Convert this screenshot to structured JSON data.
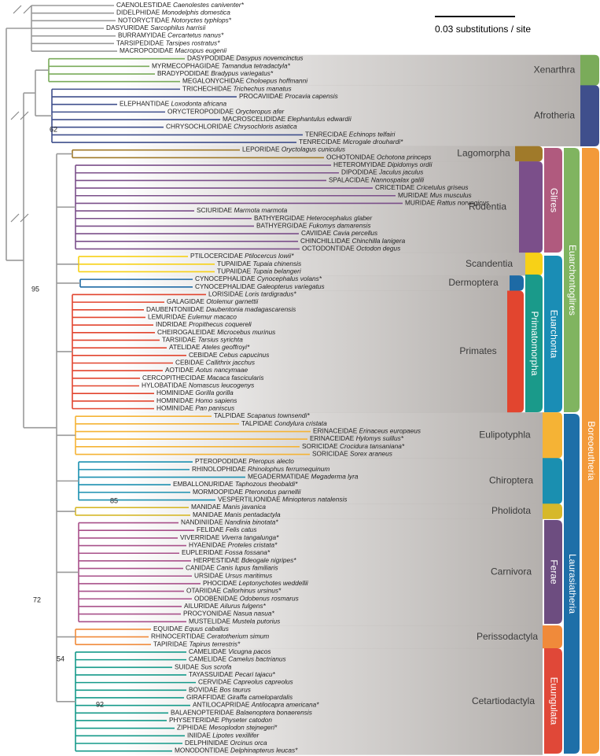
{
  "scale_bar": "0.03 substitutions / site",
  "outgroup": {
    "color": "#9a9a9a",
    "taxa": [
      [
        "CAENOLESTIDAE",
        "Caenolestes caniventer*"
      ],
      [
        "DIDELPHIDAE",
        "Monodelphis domestica"
      ],
      [
        "NOTORYCTIDAE",
        "Notoryctes typhlops*"
      ],
      [
        "DASYURIDAE",
        "Sarcophilus harrisii"
      ],
      [
        "BURRAMYIDAE",
        "Cercartetus nanus*"
      ],
      [
        "TARSIPEDIDAE",
        "Tarsipes rostratus*"
      ],
      [
        "MACROPODIDAE",
        "Macropus eugenii"
      ]
    ]
  },
  "clades": [
    {
      "name": "Xenarthra",
      "color": "#7aab5a",
      "taxa": [
        [
          "DASYPODIDAE",
          "Dasypus novemcinctus"
        ],
        [
          "MYRMECOPHAGIDAE",
          "Tamandua tetradactyla*"
        ],
        [
          "BRADYPODIDAE",
          "Bradypus variegatus*"
        ],
        [
          "MEGALONYCHIDAE",
          "Choloepus hoffmanni"
        ]
      ]
    },
    {
      "name": "Afrotheria",
      "color": "#3f4f8c",
      "taxa": [
        [
          "TRICHECHIDAE",
          "Trichechus manatus"
        ],
        [
          "PROCAVIIDAE",
          "Procavia capensis"
        ],
        [
          "ELEPHANTIDAE",
          "Loxodonta africana"
        ],
        [
          "ORYCTEROPODIDAE",
          "Orycteropus afer"
        ],
        [
          "MACROSCELIDIDAE",
          "Elephantulus edwardii"
        ],
        [
          "CHRYSOCHLORIDAE",
          "Chrysochloris asiatica"
        ],
        [
          "TENRECIDAE",
          "Echinops telfairi"
        ],
        [
          "TENRECIDAE",
          "Microgale drouhardi*"
        ]
      ]
    },
    {
      "name": "Lagomorpha",
      "color": "#a07a2a",
      "taxa": [
        [
          "LEPORIDAE",
          "Oryctolagus cuniculus"
        ],
        [
          "OCHOTONIDAE",
          "Ochotona princeps"
        ]
      ]
    },
    {
      "name": "Rodentia",
      "color": "#7b4f8a",
      "taxa": [
        [
          "HETEROMYIDAE",
          "Dipidomys ordii"
        ],
        [
          "DIPODIDAE",
          "Jaculus jaculus"
        ],
        [
          "SPALACIDAE",
          "Nannospalax galili"
        ],
        [
          "CRICETIDAE",
          "Cricetulus griseus"
        ],
        [
          "MURIDAE",
          "Mus musculus"
        ],
        [
          "MURIDAE",
          "Rattus norvegicus"
        ],
        [
          "SCIURIDAE",
          "Marmota marmota"
        ],
        [
          "BATHYERGIDAE",
          "Heterocephalus glaber"
        ],
        [
          "BATHYERGIDAE",
          "Fukomys damarensis"
        ],
        [
          "CAVIIDAE",
          "Cavia percellus"
        ],
        [
          "CHINCHILLIDAE",
          "Chinchilla lanigera"
        ],
        [
          "OCTODONTIDAE",
          "Octodon degus"
        ]
      ]
    },
    {
      "name": "Scandentia",
      "color": "#f7d117",
      "taxa": [
        [
          "PTILOCERCIDAE",
          "Ptilocercus lowii*"
        ],
        [
          "TUPAIIDAE",
          "Tupaia chinensis"
        ],
        [
          "TUPAIIDAE",
          "Tupaia belangeri"
        ]
      ]
    },
    {
      "name": "Dermoptera",
      "color": "#1d6aa5",
      "taxa": [
        [
          "CYNOCEPHALIDAE",
          "Cynocephalus volans*"
        ],
        [
          "CYNOCEPHALIDAE",
          "Galeopterus variegatus"
        ]
      ]
    },
    {
      "name": "Primates",
      "color": "#e2452f",
      "taxa": [
        [
          "LORISIDAE",
          "Loris tardigradus*"
        ],
        [
          "GALAGIDAE",
          "Otolemur garnettii"
        ],
        [
          "DAUBENTONIIDAE",
          "Daubentonia madagascarensis"
        ],
        [
          "LEMURIDAE",
          "Eulemur macaco"
        ],
        [
          "INDRIDAE",
          "Propithecus coquereli"
        ],
        [
          "CHEIROGALEIDAE",
          "Microcebus murinus"
        ],
        [
          "TARSIIDAE",
          "Tarsius syrichta"
        ],
        [
          "ATELIDAE",
          "Ateles geoffroyi*"
        ],
        [
          "CEBIDAE",
          "Cebus capucinus"
        ],
        [
          "CEBIDAE",
          "Callithrix jacchus"
        ],
        [
          "AOTIDAE",
          "Aotus nancymaae"
        ],
        [
          "CERCOPITHECIDAE",
          "Macaca fascicularis"
        ],
        [
          "HYLOBATIDAE",
          "Nomascus leucogenys"
        ],
        [
          "HOMINIDAE",
          "Gorilla gorilla"
        ],
        [
          "HOMINIDAE",
          "Homo sapiens"
        ],
        [
          "HOMINIDAE",
          "Pan paniscus"
        ]
      ]
    },
    {
      "name": "Eulipotyphla",
      "color": "#f5b335",
      "taxa": [
        [
          "TALPIDAE",
          "Scapanus townsendi*"
        ],
        [
          "TALPIDAE",
          "Condylura cristata"
        ],
        [
          "ERINACEIDAE",
          "Erinaceus europaeus"
        ],
        [
          "ERINACEIDAE",
          "Hylomys suillus*"
        ],
        [
          "SORICIDAE",
          "Crocidura tansaniana*"
        ],
        [
          "SORICIDAE",
          "Sorex araneus"
        ]
      ]
    },
    {
      "name": "Chiroptera",
      "color": "#1a8fb0",
      "taxa": [
        [
          "PTEROPODIDAE",
          "Pteropus alecto"
        ],
        [
          "RHINOLOPHIDAE",
          "Rhinolophus ferrumequinum"
        ],
        [
          "MEGADERMATIDAE",
          "Megaderma lyra"
        ],
        [
          "EMBALLONURIDAE",
          "Taphozous theobaldi*"
        ],
        [
          "MORMOOPIDAE",
          "Pteronotus parnellii"
        ],
        [
          "VESPERTILIONIDAE",
          "Miniopterus natalensis"
        ]
      ]
    },
    {
      "name": "Pholidota",
      "color": "#d6b82a",
      "taxa": [
        [
          "MANIDAE",
          "Manis javanica"
        ],
        [
          "MANIDAE",
          "Manis pentadactyla"
        ]
      ]
    },
    {
      "name": "Carnivora",
      "color": "#a8508a",
      "taxa": [
        [
          "NANDINIIDAE",
          "Nandinia binotata*"
        ],
        [
          "FELIDAE",
          "Felis catus"
        ],
        [
          "VIVERRIDAE",
          "Viverra tangalunga*"
        ],
        [
          "HYAENIDAE",
          "Proteles cristata*"
        ],
        [
          "EUPLERIDAE",
          "Fossa fossana*"
        ],
        [
          "HERPESTIDAE",
          "Bdeogale nigripes*"
        ],
        [
          "CANIDAE",
          "Canis lupus familiaris"
        ],
        [
          "URSIDAE",
          "Ursus maritimus"
        ],
        [
          "PHOCIDAE",
          "Leptonychotes weddellii"
        ],
        [
          "OTARIIDAE",
          "Callorhinus ursinus*"
        ],
        [
          "ODOBENIDAE",
          "Odobenus rosmarus"
        ],
        [
          "AILURIDAE",
          "Ailurus fulgens*"
        ],
        [
          "PROCYONIDAE",
          "Nasua nasua*"
        ],
        [
          "MUSTELIDAE",
          "Mustela putorius"
        ]
      ]
    },
    {
      "name": "Perissodactyla",
      "color": "#f08a3a",
      "taxa": [
        [
          "EQUIDAE",
          "Equus caballus"
        ],
        [
          "RHINOCERTIDAE",
          "Ceratotherium simum"
        ],
        [
          "TAPIRIDAE",
          "Tapirus terrestris*"
        ]
      ]
    },
    {
      "name": "Cetartiodactyla",
      "color": "#159a8a",
      "taxa": [
        [
          "CAMELIDAE",
          "Vicugna pacos"
        ],
        [
          "CAMELIDAE",
          "Camelus bactrianus"
        ],
        [
          "SUIDAE",
          "Sus scrofa"
        ],
        [
          "TAYASSUIDAE",
          "Pecari tajacu*"
        ],
        [
          "CERVIDAE",
          "Capreolus capreolus"
        ],
        [
          "BOVIDAE",
          "Bos taurus"
        ],
        [
          "GIRAFFIDAE",
          "Giraffa camelopardalis"
        ],
        [
          "ANTILOCAPRIDAE",
          "Antilocapra americana*"
        ],
        [
          "BALAENOPTERIDAE",
          "Balaenoptera bonaerensis"
        ],
        [
          "PHYSETERIDAE",
          "Physeter catodon"
        ],
        [
          "ZIPHIDAE",
          "Mesoplodon stejnegeri*"
        ],
        [
          "INIIDAE",
          "Lipotes vexillifer"
        ],
        [
          "DELPHINIDAE",
          "Orcinus orca"
        ],
        [
          "MONODONTIDAE",
          "Delphinapterus leucas*"
        ]
      ]
    }
  ],
  "superclades": [
    {
      "name": "Glires",
      "color": "#b05a7e"
    },
    {
      "name": "Primatomorpha",
      "color": "#1a9a8a"
    },
    {
      "name": "Euarchonta",
      "color": "#1a8db5"
    },
    {
      "name": "Euarchontoglires",
      "color": "#80b460"
    },
    {
      "name": "Ferae",
      "color": "#6d4d80"
    },
    {
      "name": "Euungulata",
      "color": "#e04838"
    },
    {
      "name": "Laurasiatheria",
      "color": "#1e6fa8"
    },
    {
      "name": "Boreoeutheria",
      "color": "#f39a3a"
    }
  ],
  "support_values": [
    62,
    95,
    85,
    72,
    54,
    92
  ]
}
